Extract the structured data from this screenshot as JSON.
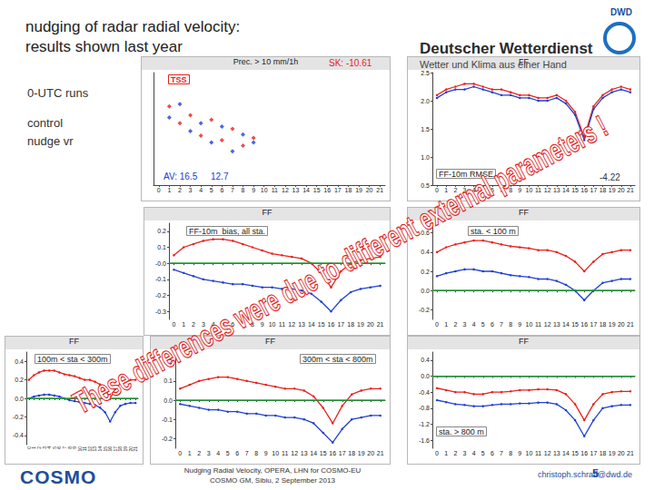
{
  "slide": {
    "title": [
      "nudging of radar radial velocity:",
      "results shown last year"
    ],
    "logo": {
      "abbr": "DWD",
      "name": "Deutscher Wetterdienst",
      "tagline": "Wetter und Klima aus einer Hand"
    },
    "run_label": "0-UTC runs",
    "overlay_text": "These differences were due to different external parameters !",
    "footer": {
      "logo": "COSMO",
      "text": [
        "Nudging Radial Velocity, OPERA, LHN for COSMO-EU",
        "COSMO GM, Sibiu, 2 September 2013"
      ],
      "email": "christoph.schraff@dwd.de",
      "page": "5"
    }
  },
  "chart_data": [
    {
      "type": "scatter",
      "title": "Prec. > 10 mm/1h",
      "subtitle": "TSS",
      "marker": "diamond",
      "categories": [
        "0",
        "1",
        "2",
        "3",
        "4",
        "5",
        "6",
        "7",
        "8",
        "9",
        "10",
        "11",
        "12",
        "13",
        "14",
        "15",
        "16",
        "17",
        "18",
        "19",
        "20",
        "21"
      ],
      "series": [
        {
          "name": "control",
          "color": "#e8211b",
          "values": [
            null,
            70,
            55,
            62,
            44,
            58,
            40,
            50,
            35,
            42,
            null,
            null,
            null,
            null,
            null,
            null,
            null,
            null,
            null,
            null,
            null,
            null
          ]
        },
        {
          "name": "nudge vr",
          "color": "#2040d0",
          "values": [
            null,
            60,
            72,
            48,
            55,
            38,
            52,
            30,
            45,
            38,
            null,
            null,
            null,
            null,
            null,
            null,
            null,
            null,
            null,
            null,
            null,
            null
          ]
        }
      ],
      "ylim": [
        0,
        100
      ],
      "tick_labels": "x",
      "grid": false,
      "annotations": [
        {
          "text": "SK: -10.61",
          "color": "#e8211b"
        },
        {
          "text": "AV: 16.5",
          "color": "#2040d0"
        },
        {
          "text": "12.7",
          "color": "#2040d0"
        }
      ]
    },
    {
      "type": "line",
      "title": "FF",
      "subtitle": "FF-10m RMSE",
      "categories": [
        "0",
        "1",
        "2",
        "3",
        "4",
        "5",
        "6",
        "7",
        "8",
        "9",
        "10",
        "11",
        "12",
        "13",
        "14",
        "15",
        "16",
        "17",
        "18",
        "19",
        "20",
        "21"
      ],
      "series": [
        {
          "color": "#e8211b",
          "values": [
            2.1,
            2.2,
            2.25,
            2.3,
            2.3,
            2.25,
            2.2,
            2.2,
            2.15,
            2.1,
            2.1,
            2.05,
            2.05,
            2.1,
            2.0,
            1.8,
            1.35,
            1.9,
            2.1,
            2.2,
            2.25,
            2.2
          ]
        },
        {
          "color": "#2040d0",
          "values": [
            2.05,
            2.15,
            2.2,
            2.2,
            2.25,
            2.2,
            2.15,
            2.1,
            2.1,
            2.05,
            2.05,
            2.0,
            2.0,
            2.05,
            1.95,
            1.75,
            1.3,
            1.85,
            2.05,
            2.15,
            2.2,
            2.15
          ]
        }
      ],
      "ylim": [
        0.5,
        2.5
      ],
      "yticks": [
        0.5,
        {
          "value": 1,
          "label": "1.0"
        },
        1.5,
        {
          "value": 2,
          "label": "2.0"
        },
        2.5
      ],
      "grid": false,
      "annotations": [
        {
          "text": "-4.22",
          "color": "#333333"
        }
      ]
    },
    {
      "type": "line",
      "title": "FF",
      "subtitle": "FF-10m  bias, all sta.",
      "categories": [
        "0",
        "1",
        "2",
        "3",
        "4",
        "5",
        "6",
        "7",
        "8",
        "9",
        "10",
        "11",
        "12",
        "13",
        "14",
        "15",
        "16",
        "17",
        "18",
        "19",
        "20",
        "21"
      ],
      "series": [
        {
          "color": "#e8211b",
          "values": [
            0.05,
            0.1,
            0.12,
            0.14,
            0.15,
            0.15,
            0.14,
            0.12,
            0.1,
            0.08,
            0.06,
            0.05,
            0.04,
            0.03,
            0.0,
            -0.06,
            -0.15,
            -0.05,
            0.0,
            0.02,
            0.03,
            0.04
          ]
        },
        {
          "color": "#2040d0",
          "values": [
            -0.04,
            -0.06,
            -0.08,
            -0.1,
            -0.11,
            -0.12,
            -0.13,
            -0.13,
            -0.14,
            -0.15,
            -0.15,
            -0.16,
            -0.16,
            -0.17,
            -0.19,
            -0.24,
            -0.3,
            -0.23,
            -0.18,
            -0.16,
            -0.15,
            -0.14
          ]
        }
      ],
      "ylim": [
        -0.35,
        0.25
      ],
      "yticks": [
        0.2,
        0.1,
        {
          "value": 0,
          "label": "-0.0"
        },
        -0.1,
        -0.2,
        -0.3
      ],
      "hline": 0,
      "grid": false
    },
    {
      "type": "line",
      "title": "FF",
      "subtitle": "sta. < 100 m",
      "categories": [
        "0",
        "1",
        "2",
        "3",
        "4",
        "5",
        "6",
        "7",
        "8",
        "9",
        "10",
        "11",
        "12",
        "13",
        "14",
        "15",
        "16",
        "17",
        "18",
        "19",
        "20",
        "21"
      ],
      "series": [
        {
          "color": "#e8211b",
          "values": [
            0.4,
            0.45,
            0.48,
            0.5,
            0.52,
            0.52,
            0.5,
            0.48,
            0.46,
            0.45,
            0.44,
            0.42,
            0.42,
            0.4,
            0.36,
            0.3,
            0.2,
            0.3,
            0.38,
            0.4,
            0.42,
            0.42
          ]
        },
        {
          "color": "#2040d0",
          "values": [
            0.15,
            0.18,
            0.2,
            0.22,
            0.22,
            0.2,
            0.2,
            0.18,
            0.16,
            0.15,
            0.14,
            0.12,
            0.12,
            0.1,
            0.06,
            0.0,
            -0.1,
            0.0,
            0.08,
            0.1,
            0.12,
            0.12
          ]
        }
      ],
      "ylim": [
        -0.3,
        0.7
      ],
      "yticks": [
        0.6,
        0.4,
        0.2,
        {
          "value": 0,
          "label": "0.0"
        },
        -0.2
      ],
      "hline": 0,
      "grid": false
    },
    {
      "type": "line",
      "title": "FF",
      "subtitle": "100m < sta < 300m",
      "categories": [
        "0",
        "1",
        "2",
        "3",
        "4",
        "5",
        "6",
        "7",
        "8",
        "9",
        "10",
        "11",
        "12",
        "13",
        "14",
        "15",
        "16",
        "17",
        "18",
        "19",
        "20",
        "21"
      ],
      "series": [
        {
          "color": "#e8211b",
          "values": [
            0.2,
            0.25,
            0.28,
            0.3,
            0.3,
            0.3,
            0.28,
            0.26,
            0.25,
            0.24,
            0.22,
            0.2,
            0.2,
            0.18,
            0.15,
            0.1,
            0.0,
            0.1,
            0.16,
            0.18,
            0.2,
            0.2
          ]
        },
        {
          "color": "#2040d0",
          "values": [
            0.0,
            0.02,
            0.03,
            0.04,
            0.04,
            0.03,
            0.02,
            0.0,
            -0.02,
            -0.03,
            -0.04,
            -0.05,
            -0.06,
            -0.07,
            -0.1,
            -0.15,
            -0.25,
            -0.15,
            -0.08,
            -0.06,
            -0.05,
            -0.05
          ]
        }
      ],
      "ylim": [
        -0.5,
        0.5
      ],
      "yticks": [
        0.4,
        0.2,
        {
          "value": 0,
          "label": "0.0"
        },
        -0.2,
        -0.4
      ],
      "hline": 0,
      "grid": false
    },
    {
      "type": "line",
      "title": "FF",
      "subtitle": "300m < sta < 800m",
      "categories": [
        "0",
        "1",
        "2",
        "3",
        "4",
        "5",
        "6",
        "7",
        "8",
        "9",
        "10",
        "11",
        "12",
        "13",
        "14",
        "15",
        "16",
        "17",
        "18",
        "19",
        "20",
        "21"
      ],
      "series": [
        {
          "color": "#e8211b",
          "values": [
            0.06,
            0.08,
            0.1,
            0.11,
            0.12,
            0.12,
            0.11,
            0.1,
            0.09,
            0.08,
            0.07,
            0.06,
            0.06,
            0.05,
            0.02,
            -0.04,
            -0.12,
            -0.03,
            0.03,
            0.05,
            0.06,
            0.06
          ]
        },
        {
          "color": "#2040d0",
          "values": [
            -0.02,
            -0.03,
            -0.04,
            -0.05,
            -0.05,
            -0.06,
            -0.06,
            -0.07,
            -0.07,
            -0.08,
            -0.08,
            -0.09,
            -0.09,
            -0.1,
            -0.12,
            -0.17,
            -0.22,
            -0.15,
            -0.1,
            -0.09,
            -0.08,
            -0.08
          ]
        }
      ],
      "ylim": [
        -0.25,
        0.25
      ],
      "yticks": [
        0.2,
        0.1,
        {
          "value": 0,
          "label": "0.0"
        },
        -0.1,
        -0.2
      ],
      "hline": 0,
      "grid": false
    },
    {
      "type": "line",
      "title": "FF",
      "subtitle": "sta. > 800 m",
      "categories": [
        "0",
        "1",
        "2",
        "3",
        "4",
        "5",
        "6",
        "7",
        "8",
        "9",
        "10",
        "11",
        "12",
        "13",
        "14",
        "15",
        "16",
        "17",
        "18",
        "19",
        "20",
        "21"
      ],
      "series": [
        {
          "color": "#e8211b",
          "values": [
            -0.3,
            -0.35,
            -0.4,
            -0.4,
            -0.45,
            -0.45,
            -0.4,
            -0.4,
            -0.38,
            -0.35,
            -0.35,
            -0.33,
            -0.33,
            -0.35,
            -0.45,
            -0.7,
            -1.1,
            -0.7,
            -0.45,
            -0.4,
            -0.38,
            -0.38
          ]
        },
        {
          "color": "#2040d0",
          "values": [
            -0.6,
            -0.65,
            -0.7,
            -0.72,
            -0.75,
            -0.75,
            -0.72,
            -0.7,
            -0.7,
            -0.68,
            -0.68,
            -0.66,
            -0.66,
            -0.7,
            -0.85,
            -1.1,
            -1.5,
            -1.1,
            -0.8,
            -0.75,
            -0.72,
            -0.72
          ]
        }
      ],
      "ylim": [
        -1.8,
        0.6
      ],
      "yticks": [
        0.4,
        {
          "value": 0,
          "label": "0.0"
        },
        -0.4,
        -0.8,
        -1.2,
        -1.6
      ],
      "hline": 0,
      "grid": false
    }
  ]
}
